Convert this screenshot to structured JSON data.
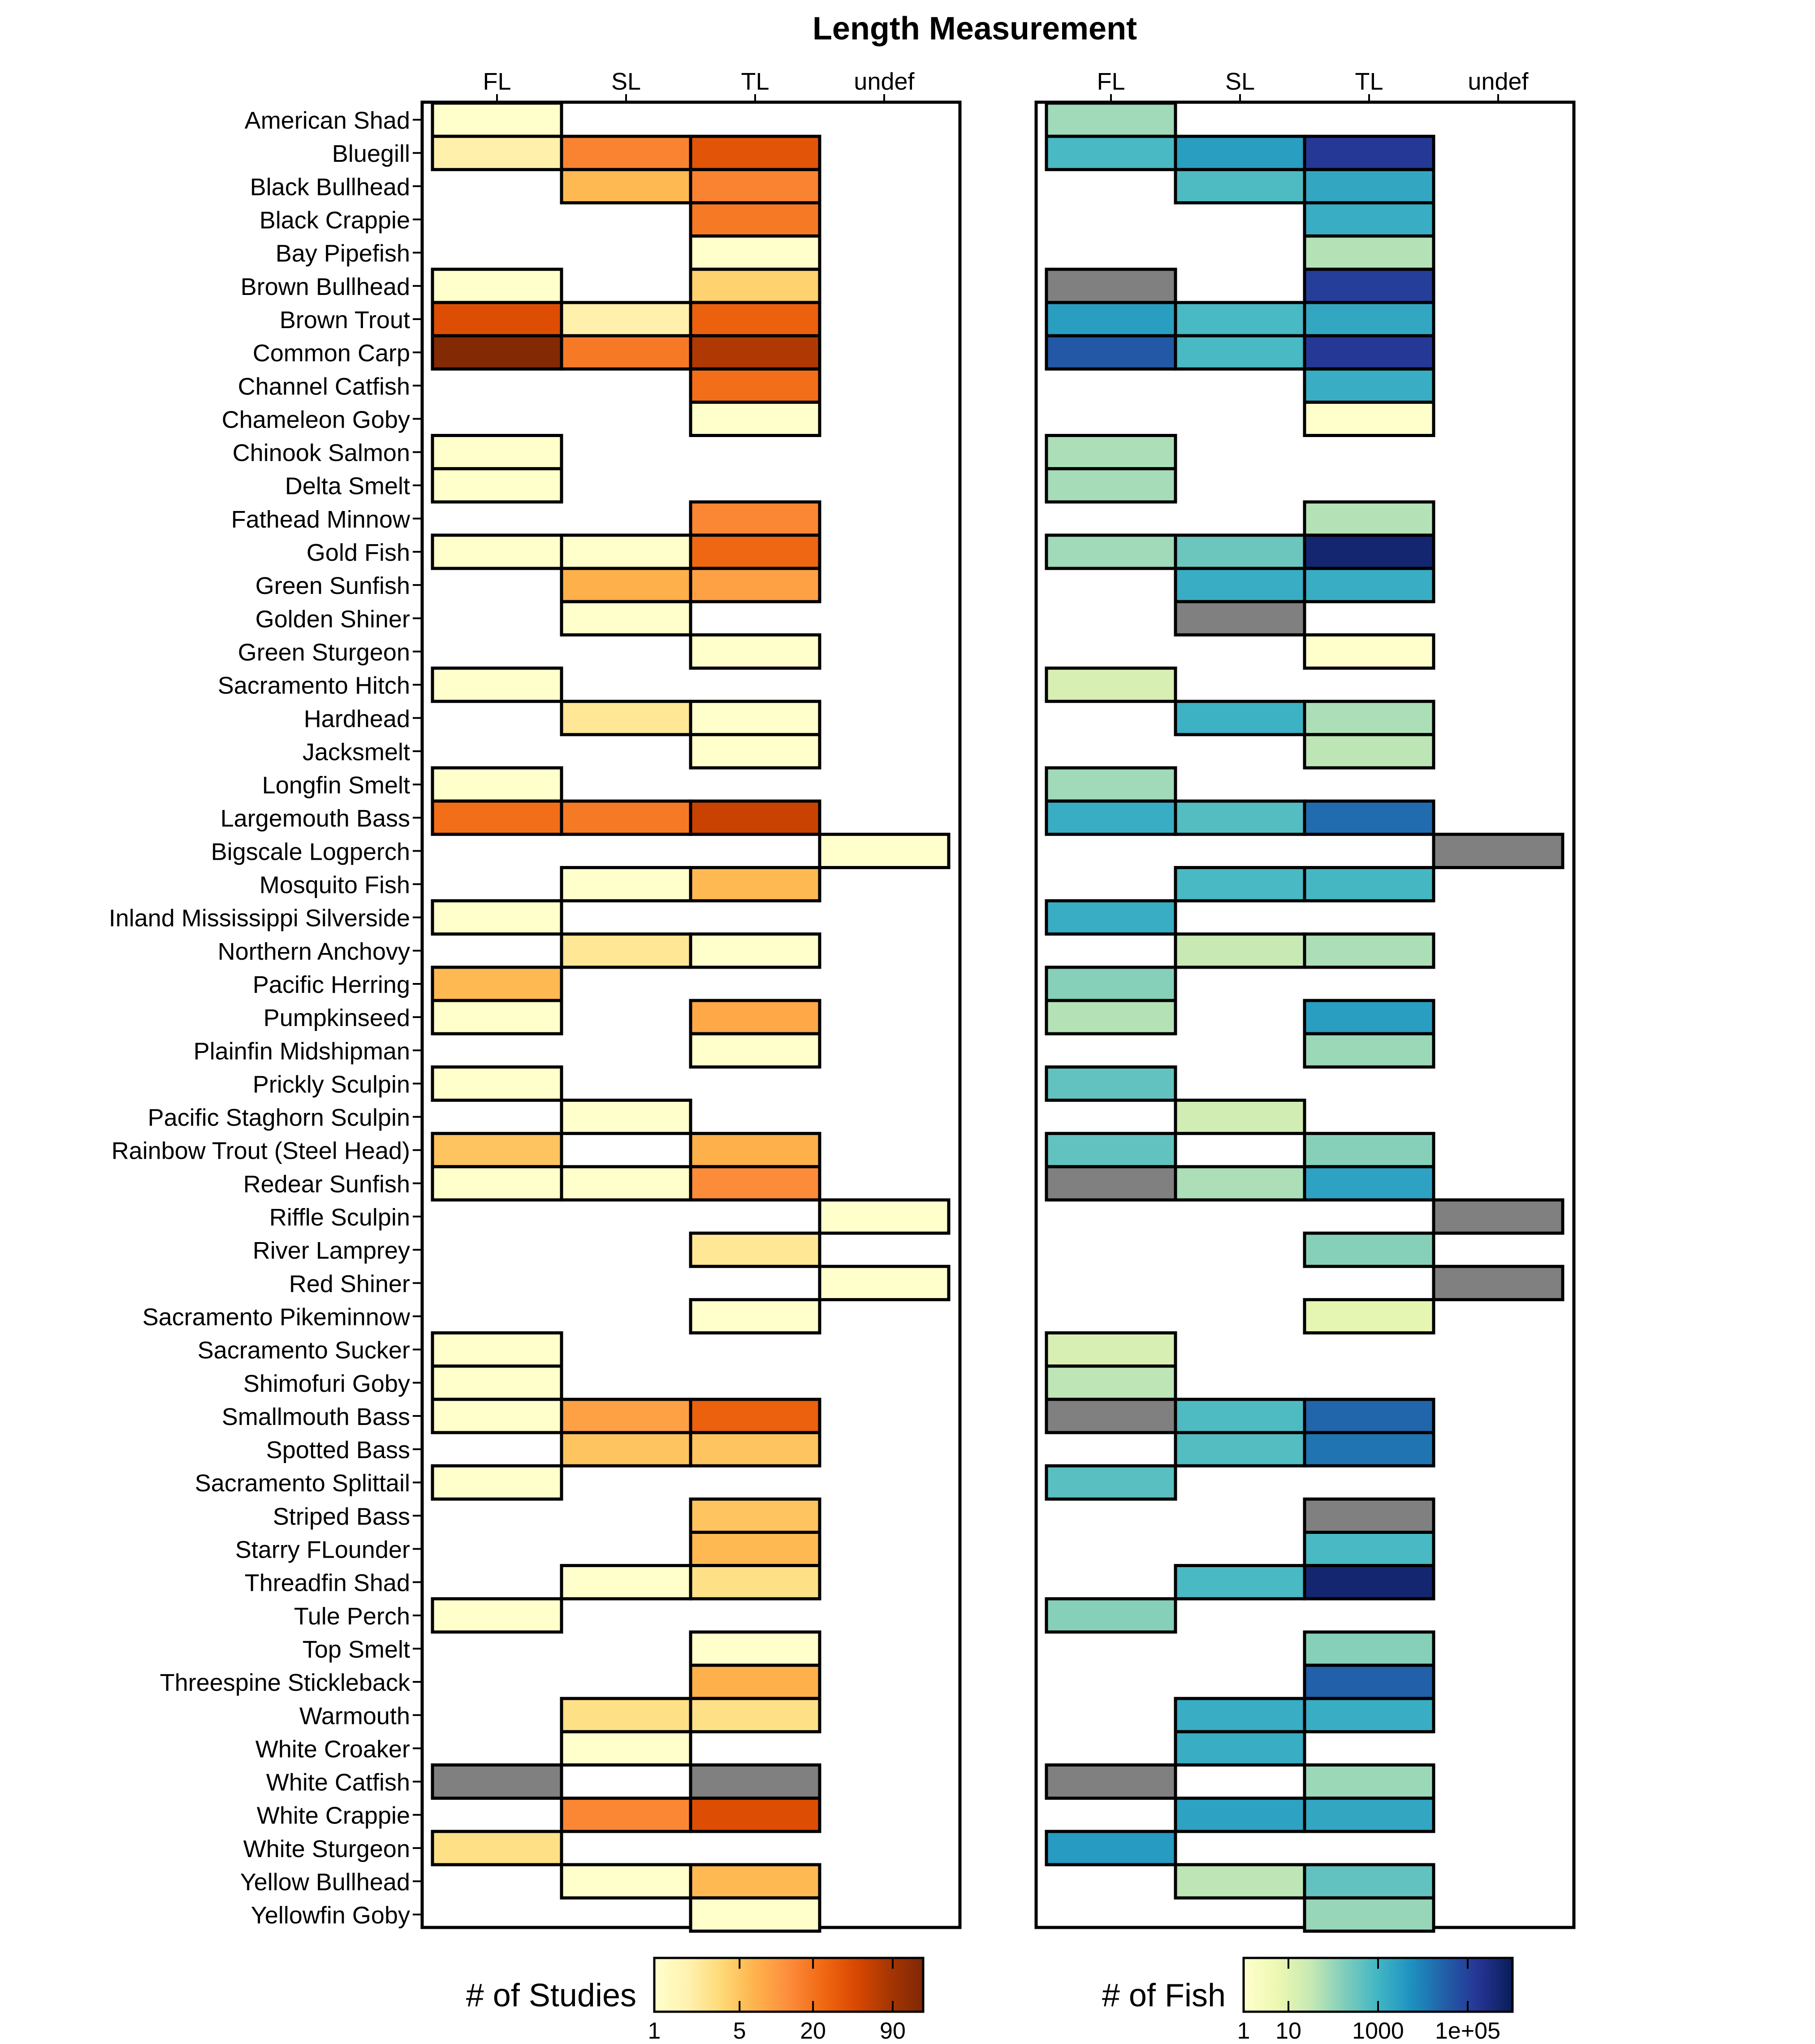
{
  "chart_data": {
    "type": "heatmap",
    "title": "Length Measurement",
    "columns": [
      "FL",
      "SL",
      "TL",
      "undef"
    ],
    "species": [
      "American Shad",
      "Bluegill",
      "Black Bullhead",
      "Black Crappie",
      "Bay Pipefish",
      "Brown Bullhead",
      "Brown Trout",
      "Common Carp",
      "Channel Catfish",
      "Chameleon Goby",
      "Chinook Salmon",
      "Delta Smelt",
      "Fathead Minnow",
      "Gold Fish",
      "Green Sunfish",
      "Golden Shiner",
      "Green Sturgeon",
      "Sacramento Hitch",
      "Hardhead",
      "Jacksmelt",
      "Longfin Smelt",
      "Largemouth Bass",
      "Bigscale Logperch",
      "Mosquito Fish",
      "Inland Mississippi Silverside",
      "Northern Anchovy",
      "Pacific Herring",
      "Pumpkinseed",
      "Plainfin Midshipman",
      "Prickly Sculpin",
      "Pacific Staghorn Sculpin",
      "Rainbow Trout (Steel Head)",
      "Redear Sunfish",
      "Riffle Sculpin",
      "River Lamprey",
      "Red Shiner",
      "Sacramento Pikeminnow",
      "Sacramento Sucker",
      "Shimofuri Goby",
      "Smallmouth Bass",
      "Spotted Bass",
      "Sacramento Splittail",
      "Striped Bass",
      "Starry FLounder",
      "Threadfin Shad",
      "Tule Perch",
      "Top Smelt",
      "Threespine Stickleback",
      "Warmouth",
      "White Croaker",
      "White Catfish",
      "White Crappie",
      "White Sturgeon",
      "Yellow Bullhead",
      "Yellowfin Goby"
    ],
    "panels": [
      {
        "legend_title": "# of Studies",
        "scale": "log",
        "domain": [
          1,
          160
        ],
        "ticks": [
          {
            "value": 1,
            "label": "1"
          },
          {
            "value": 5,
            "label": "5"
          },
          {
            "value": 20,
            "label": "20"
          },
          {
            "value": 90,
            "label": "90"
          }
        ],
        "colors": [
          "#ffffcc",
          "#fff2b0",
          "#fed976",
          "#feb24c",
          "#fd8d3c",
          "#f16913",
          "#d94801",
          "#a63603",
          "#7f2704"
        ],
        "na_color": "#808080",
        "values": [
          [
            1,
            null,
            null,
            null
          ],
          [
            2,
            15,
            35,
            null
          ],
          [
            null,
            6,
            15,
            null
          ],
          [
            null,
            null,
            18,
            null
          ],
          [
            null,
            null,
            1,
            null
          ],
          [
            1,
            null,
            4,
            null
          ],
          [
            40,
            2,
            28,
            null
          ],
          [
            150,
            18,
            75,
            null
          ],
          [
            null,
            null,
            22,
            null
          ],
          [
            null,
            null,
            1,
            null
          ],
          [
            1,
            null,
            null,
            null
          ],
          [
            1,
            null,
            null,
            null
          ],
          [
            null,
            null,
            14,
            null
          ],
          [
            1,
            1,
            25,
            null
          ],
          [
            null,
            7,
            9,
            null
          ],
          [
            null,
            1,
            null,
            null
          ],
          [
            null,
            null,
            1,
            null
          ],
          [
            1,
            null,
            null,
            null
          ],
          [
            null,
            2.5,
            1,
            null
          ],
          [
            null,
            null,
            1,
            null
          ],
          [
            1,
            null,
            null,
            null
          ],
          [
            22,
            18,
            55,
            null
          ],
          [
            null,
            null,
            null,
            1
          ],
          [
            null,
            1,
            6,
            null
          ],
          [
            1,
            null,
            null,
            null
          ],
          [
            null,
            2.5,
            1,
            null
          ],
          [
            6,
            null,
            null,
            null
          ],
          [
            1,
            null,
            8,
            null
          ],
          [
            null,
            null,
            1,
            null
          ],
          [
            1,
            null,
            null,
            null
          ],
          [
            null,
            1,
            null,
            null
          ],
          [
            5,
            null,
            7,
            null
          ],
          [
            1,
            1,
            13,
            null
          ],
          [
            null,
            null,
            null,
            1
          ],
          [
            null,
            null,
            2.5,
            null
          ],
          [
            null,
            null,
            null,
            1
          ],
          [
            null,
            null,
            1,
            null
          ],
          [
            1,
            null,
            null,
            null
          ],
          [
            1,
            null,
            null,
            null
          ],
          [
            1,
            9,
            28,
            null
          ],
          [
            null,
            5,
            5,
            null
          ],
          [
            1,
            null,
            null,
            null
          ],
          [
            null,
            null,
            5,
            null
          ],
          [
            null,
            null,
            6,
            null
          ],
          [
            null,
            1,
            3,
            null
          ],
          [
            1,
            null,
            null,
            null
          ],
          [
            null,
            null,
            1,
            null
          ],
          [
            null,
            null,
            7,
            null
          ],
          [
            null,
            3,
            3,
            null
          ],
          [
            null,
            1,
            null,
            null
          ],
          [
            "NA",
            null,
            "NA",
            null
          ],
          [
            null,
            14,
            40,
            null
          ],
          [
            3,
            null,
            null,
            null
          ],
          [
            null,
            1,
            6,
            null
          ],
          [
            null,
            null,
            1,
            null
          ]
        ]
      },
      {
        "legend_title": "# of Fish",
        "scale": "log",
        "domain": [
          1,
          1000000
        ],
        "ticks": [
          {
            "value": 1,
            "label": "1"
          },
          {
            "value": 10,
            "label": "10"
          },
          {
            "value": 1000,
            "label": "1000"
          },
          {
            "value": 100000,
            "label": "1e+05"
          }
        ],
        "colors": [
          "#ffffcc",
          "#edf8b1",
          "#c7e9b4",
          "#7fcdbb",
          "#41b6c4",
          "#1d91c0",
          "#225ea8",
          "#253494",
          "#081d58"
        ],
        "na_color": "#808080",
        "values": [
          [
            80,
            null,
            null,
            null
          ],
          [
            800,
            3000,
            150000,
            null
          ],
          [
            null,
            700,
            2000,
            null
          ],
          [
            null,
            null,
            1500,
            null
          ],
          [
            null,
            null,
            50,
            null
          ],
          [
            "NA",
            null,
            120000,
            null
          ],
          [
            3000,
            800,
            2000,
            null
          ],
          [
            40000,
            800,
            150000,
            null
          ],
          [
            null,
            null,
            1500,
            null
          ],
          [
            null,
            null,
            1,
            null
          ],
          [
            60,
            null,
            null,
            null
          ],
          [
            70,
            null,
            null,
            null
          ],
          [
            null,
            null,
            50,
            null
          ],
          [
            80,
            300,
            500000,
            null
          ],
          [
            null,
            1500,
            1500,
            null
          ],
          [
            null,
            "NA",
            null,
            null
          ],
          [
            null,
            null,
            1,
            null
          ],
          [
            15,
            null,
            null,
            null
          ],
          [
            null,
            1200,
            60,
            null
          ],
          [
            null,
            null,
            40,
            null
          ],
          [
            80,
            null,
            null,
            null
          ],
          [
            1500,
            600,
            20000,
            null
          ],
          [
            null,
            null,
            null,
            "NA"
          ],
          [
            null,
            800,
            900,
            null
          ],
          [
            1500,
            null,
            null,
            null
          ],
          [
            null,
            30,
            60,
            null
          ],
          [
            150,
            null,
            null,
            null
          ],
          [
            50,
            null,
            3000,
            null
          ],
          [
            null,
            null,
            90,
            null
          ],
          [
            400,
            null,
            null,
            null
          ],
          [
            null,
            20,
            null,
            null
          ],
          [
            400,
            null,
            150,
            null
          ],
          [
            "NA",
            60,
            2500,
            null
          ],
          [
            null,
            null,
            null,
            "NA"
          ],
          [
            null,
            null,
            150,
            null
          ],
          [
            null,
            null,
            null,
            "NA"
          ],
          [
            null,
            null,
            8,
            null
          ],
          [
            15,
            null,
            null,
            null
          ],
          [
            40,
            null,
            null,
            null
          ],
          [
            "NA",
            700,
            25000,
            null
          ],
          [
            null,
            600,
            15000,
            null
          ],
          [
            500,
            null,
            null,
            null
          ],
          [
            null,
            null,
            "NA",
            null
          ],
          [
            null,
            null,
            800,
            null
          ],
          [
            null,
            800,
            500000,
            null
          ],
          [
            150,
            null,
            null,
            null
          ],
          [
            null,
            null,
            150,
            null
          ],
          [
            null,
            null,
            30000,
            null
          ],
          [
            null,
            1500,
            1500,
            null
          ],
          [
            null,
            1500,
            null,
            null
          ],
          [
            "NA",
            null,
            90,
            null
          ],
          [
            null,
            2500,
            2000,
            null
          ],
          [
            3500,
            null,
            null,
            null
          ],
          [
            null,
            40,
            400,
            null
          ],
          [
            null,
            null,
            100,
            null
          ]
        ]
      }
    ]
  }
}
